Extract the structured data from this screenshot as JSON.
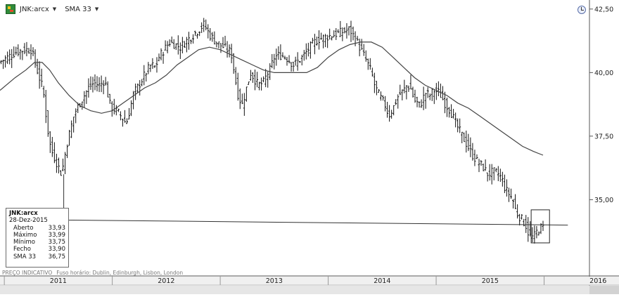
{
  "toolbar": {
    "symbol_label": "JNK:arcx",
    "indicator_label": "SMA 33"
  },
  "infobox": {
    "symbol": "JNK:arcx",
    "date": "28-Dez-2015",
    "rows": [
      {
        "label": "Aberto",
        "value": "33,93"
      },
      {
        "label": "Máximo",
        "value": "33,99"
      },
      {
        "label": "Mínimo",
        "value": "33,75"
      },
      {
        "label": "Fecho",
        "value": "33,90"
      },
      {
        "label": "SMA 33",
        "value": "36,75"
      }
    ]
  },
  "footnote": {
    "price_note": "PREÇO INDICATIVO",
    "timezone": "Fuso horário: Dublin, Edinburgh, Lisbon, London"
  },
  "colors": {
    "bars": "#111111",
    "sma": "#444444",
    "axis": "#555555",
    "trendline": "#333333"
  },
  "chart_data": {
    "type": "line",
    "title": "",
    "ylabel": "",
    "xlabel": "",
    "y_ticks": [
      "42,50",
      "40,00",
      "37,50",
      "35,00"
    ],
    "y_tick_values": [
      42.5,
      40.0,
      37.5,
      35.0
    ],
    "ylim": [
      32.0,
      42.8
    ],
    "x_labels": [
      "2011",
      "2012",
      "2013",
      "2014",
      "2015",
      "2016"
    ],
    "xlim": [
      2010.96,
      2016.42
    ],
    "legend": "none",
    "grid": false,
    "series": [
      {
        "name": "JNK:arcx",
        "style": "ohlc-bars",
        "x": [
          2010.97,
          2011.05,
          2011.12,
          2011.2,
          2011.27,
          2011.33,
          2011.38,
          2011.42,
          2011.45,
          2011.5,
          2011.55,
          2011.6,
          2011.64,
          2011.67,
          2011.72,
          2011.8,
          2011.85,
          2011.9,
          2011.95,
          2012.0,
          2012.08,
          2012.15,
          2012.22,
          2012.28,
          2012.33,
          2012.38,
          2012.42,
          2012.45,
          2012.5,
          2012.55,
          2012.6,
          2012.65,
          2012.72,
          2012.8,
          2012.87,
          2012.92,
          2012.98,
          2013.05,
          2013.12,
          2013.18,
          2013.22,
          2013.27,
          2013.3,
          2013.33,
          2013.37,
          2013.42,
          2013.45,
          2013.48,
          2013.52,
          2013.57,
          2013.63,
          2013.7,
          2013.78,
          2013.85,
          2013.92,
          2014.0,
          2014.08,
          2014.15,
          2014.22,
          2014.3,
          2014.37,
          2014.42,
          2014.45,
          2014.48,
          2014.52,
          2014.55,
          2014.58,
          2014.62,
          2014.67,
          2014.72,
          2014.75,
          2014.78,
          2014.82,
          2014.87,
          2014.92,
          2014.96,
          2015.0,
          2015.05,
          2015.1,
          2015.15,
          2015.2,
          2015.25,
          2015.3,
          2015.35,
          2015.4,
          2015.45,
          2015.5,
          2015.55,
          2015.6,
          2015.63,
          2015.66,
          2015.7,
          2015.73,
          2015.76,
          2015.8,
          2015.85,
          2015.88,
          2015.92,
          2015.96,
          2015.99
        ],
        "values": [
          40.4,
          40.6,
          40.8,
          40.9,
          40.9,
          40.0,
          39.3,
          37.8,
          37.0,
          36.5,
          36.0,
          37.2,
          37.9,
          38.4,
          38.8,
          39.4,
          39.6,
          39.5,
          39.7,
          38.7,
          38.4,
          38.0,
          39.2,
          39.6,
          40.0,
          40.3,
          40.2,
          40.6,
          40.9,
          41.2,
          41.1,
          41.0,
          41.3,
          41.6,
          41.9,
          41.5,
          41.2,
          41.0,
          40.8,
          39.2,
          38.7,
          39.5,
          40.0,
          39.8,
          39.5,
          39.6,
          39.9,
          40.1,
          40.6,
          40.7,
          40.6,
          40.3,
          40.6,
          41.0,
          41.3,
          41.4,
          41.5,
          41.6,
          41.7,
          41.1,
          40.5,
          40.0,
          39.5,
          39.2,
          38.9,
          38.7,
          38.3,
          38.6,
          39.1,
          39.3,
          39.5,
          39.4,
          38.9,
          38.7,
          39.2,
          39.1,
          39.3,
          39.2,
          38.8,
          38.5,
          38.0,
          37.6,
          37.2,
          36.8,
          36.5,
          36.3,
          36.0,
          36.1,
          36.0,
          35.8,
          35.4,
          35.2,
          35.0,
          34.5,
          34.3,
          34.0,
          33.6,
          33.5,
          33.8,
          33.9
        ]
      },
      {
        "name": "SMA 33",
        "style": "line",
        "x": [
          2010.96,
          2011.1,
          2011.2,
          2011.28,
          2011.35,
          2011.42,
          2011.5,
          2011.6,
          2011.7,
          2011.8,
          2011.9,
          2012.0,
          2012.1,
          2012.2,
          2012.3,
          2012.4,
          2012.5,
          2012.6,
          2012.7,
          2012.8,
          2012.9,
          2013.0,
          2013.1,
          2013.2,
          2013.3,
          2013.4,
          2013.5,
          2013.6,
          2013.7,
          2013.8,
          2013.9,
          2014.0,
          2014.1,
          2014.2,
          2014.3,
          2014.4,
          2014.5,
          2014.6,
          2014.7,
          2014.8,
          2014.9,
          2015.0,
          2015.1,
          2015.2,
          2015.3,
          2015.4,
          2015.5,
          2015.6,
          2015.7,
          2015.8,
          2015.9,
          2015.99
        ],
        "values": [
          39.3,
          39.8,
          40.1,
          40.4,
          40.4,
          40.1,
          39.6,
          39.1,
          38.7,
          38.5,
          38.4,
          38.5,
          38.8,
          39.1,
          39.4,
          39.6,
          39.9,
          40.3,
          40.6,
          40.9,
          41.0,
          40.9,
          40.7,
          40.5,
          40.3,
          40.1,
          40.0,
          40.0,
          40.0,
          40.0,
          40.2,
          40.6,
          40.9,
          41.1,
          41.2,
          41.2,
          41.0,
          40.6,
          40.2,
          39.8,
          39.5,
          39.3,
          39.1,
          38.8,
          38.6,
          38.3,
          38.0,
          37.7,
          37.4,
          37.1,
          36.9,
          36.75
        ]
      }
    ],
    "trendline": {
      "x": [
        2011.55,
        2011.55,
        2016.22
      ],
      "y": [
        36.0,
        34.2,
        34.0
      ]
    },
    "highlight_box": {
      "x": [
        2015.88,
        2016.05
      ],
      "y": [
        33.3,
        34.6
      ]
    }
  }
}
